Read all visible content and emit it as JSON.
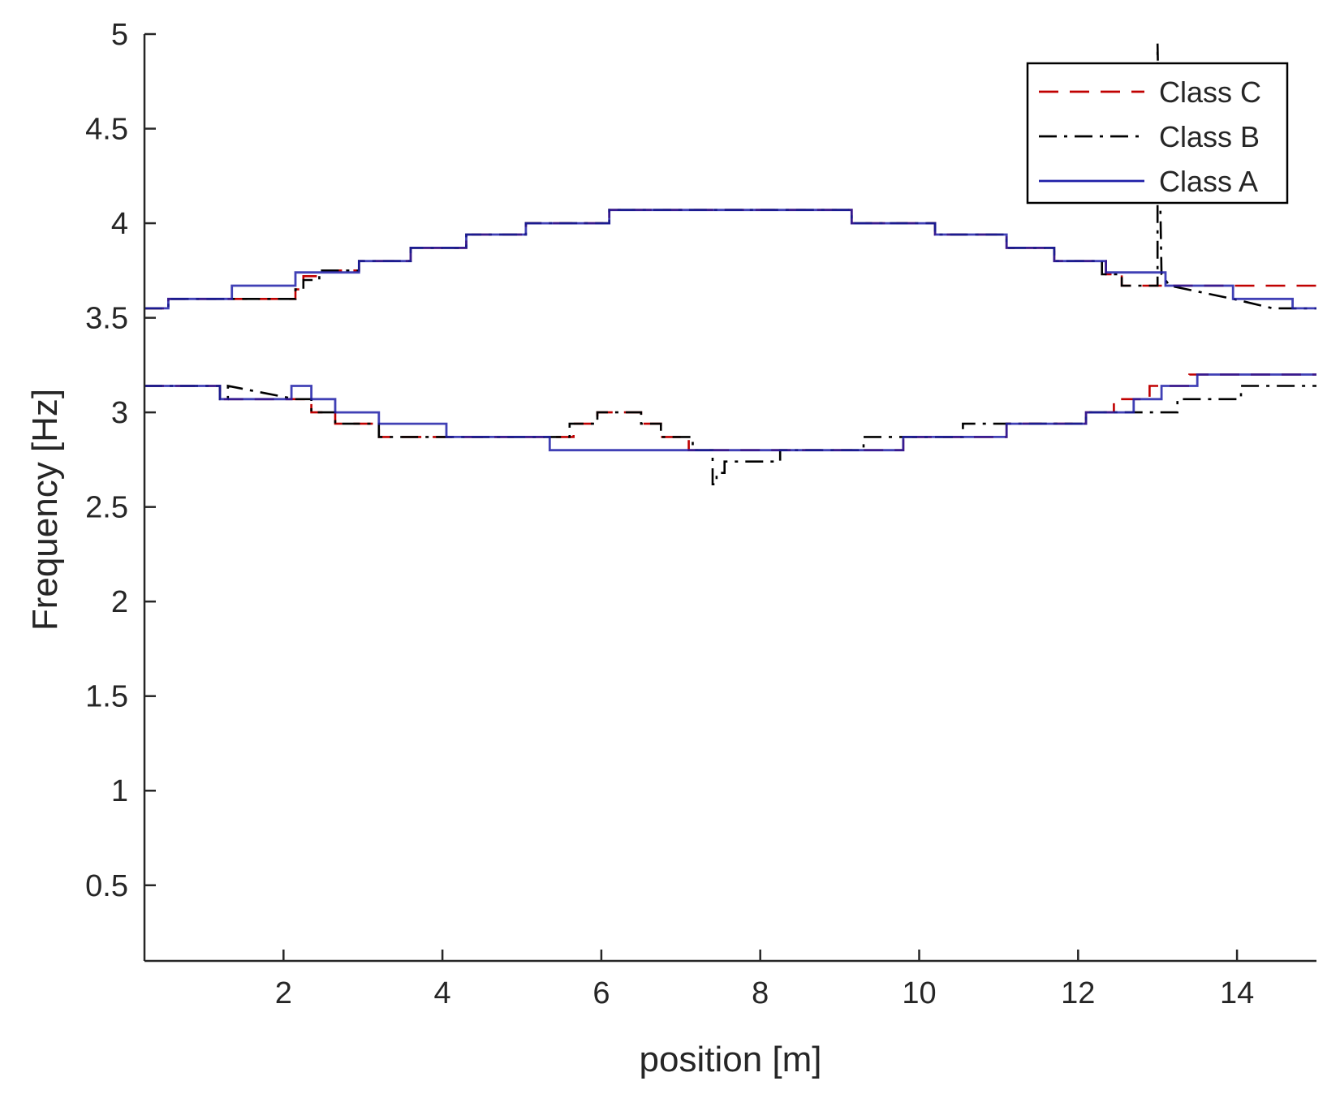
{
  "chart_data": {
    "type": "line",
    "title": "",
    "xlabel": "position [m]",
    "ylabel": "Frequency [Hz]",
    "xlim": [
      0.25,
      15
    ],
    "ylim": [
      0.1,
      5
    ],
    "xticks": [
      2,
      4,
      6,
      8,
      10,
      12,
      14
    ],
    "yticks": [
      0.5,
      1,
      1.5,
      2,
      2.5,
      3,
      3.5,
      4,
      4.5,
      5
    ],
    "grid": false,
    "legend": {
      "placement": "top-right"
    },
    "series": [
      {
        "name": "Class C",
        "color": "#c00000",
        "dash": "dashed",
        "lines": [
          {
            "x": [
              0.25,
              0.55,
              0.55,
              1.35,
              1.35,
              2.15,
              2.15,
              2.25,
              2.25,
              2.45,
              2.45,
              2.95,
              2.95,
              3.6,
              3.6,
              4.3,
              4.3,
              5.05,
              5.05,
              6.1,
              6.1,
              9.15,
              9.15,
              10.2,
              10.2,
              11.1,
              11.1,
              11.7,
              11.7,
              12.35,
              12.35,
              12.55,
              12.55,
              13.0,
              13.0,
              15.0
            ],
            "y": [
              3.55,
              3.55,
              3.6,
              3.6,
              3.6,
              3.6,
              3.65,
              3.65,
              3.72,
              3.72,
              3.75,
              3.75,
              3.8,
              3.8,
              3.87,
              3.87,
              3.94,
              3.94,
              4.0,
              4.0,
              4.07,
              4.07,
              4.0,
              4.0,
              3.94,
              3.94,
              3.87,
              3.87,
              3.8,
              3.8,
              3.73,
              3.73,
              3.67,
              3.67,
              3.67,
              3.67
            ]
          },
          {
            "x": [
              0.25,
              1.2,
              1.2,
              1.3,
              1.3,
              2.15,
              2.15,
              2.35,
              2.35,
              2.65,
              2.65,
              3.2,
              3.2,
              4.05,
              4.05,
              5.35,
              5.35,
              5.65,
              5.65,
              5.95,
              5.95,
              6.5,
              6.5,
              6.75,
              6.75,
              7.1,
              7.1,
              7.4,
              7.4,
              9.8,
              9.8,
              11.1,
              11.1,
              12.1,
              12.1,
              12.45,
              12.45,
              12.9,
              12.9,
              13.4,
              13.4,
              15.0
            ],
            "y": [
              3.14,
              3.14,
              3.07,
              3.07,
              3.07,
              3.07,
              3.07,
              3.07,
              3.0,
              3.0,
              2.94,
              2.94,
              2.87,
              2.87,
              2.87,
              2.87,
              2.87,
              2.87,
              2.94,
              2.94,
              3.0,
              3.0,
              2.94,
              2.94,
              2.87,
              2.87,
              2.8,
              2.8,
              2.8,
              2.8,
              2.87,
              2.87,
              2.94,
              2.94,
              3.0,
              3.0,
              3.07,
              3.07,
              3.14,
              3.14,
              3.2,
              3.2
            ]
          }
        ]
      },
      {
        "name": "Class B",
        "color": "#000000",
        "dash": "dashdot",
        "lines": [
          {
            "x": [
              0.25,
              0.55,
              0.55,
              1.35,
              1.35,
              2.15,
              2.15,
              2.25,
              2.25,
              2.45,
              2.45,
              2.95,
              2.95,
              3.6,
              3.6,
              4.3,
              4.3,
              5.05,
              5.05,
              6.1,
              6.1,
              9.15,
              9.15,
              10.2,
              10.2,
              11.1,
              11.1,
              11.7,
              11.7,
              12.3,
              12.3,
              12.55,
              12.55,
              13.0,
              13.0,
              13.05,
              13.05,
              13.15,
              13.15,
              13.95,
              13.95,
              14.45,
              14.45,
              15.0
            ],
            "y": [
              3.55,
              3.55,
              3.6,
              3.6,
              3.6,
              3.6,
              3.65,
              3.65,
              3.7,
              3.7,
              3.75,
              3.75,
              3.8,
              3.8,
              3.87,
              3.87,
              3.94,
              3.94,
              4.0,
              4.0,
              4.07,
              4.07,
              4.0,
              4.0,
              3.94,
              3.94,
              3.87,
              3.87,
              3.8,
              3.8,
              3.73,
              3.73,
              3.67,
              3.67,
              4.95,
              3.73,
              3.73,
              3.67,
              3.67,
              3.6,
              3.6,
              3.55,
              3.55,
              3.55
            ]
          },
          {
            "x": [
              0.25,
              1.2,
              1.2,
              1.3,
              1.3,
              2.15,
              2.15,
              2.35,
              2.35,
              2.65,
              2.65,
              3.2,
              3.2,
              4.05,
              4.05,
              5.6,
              5.6,
              5.95,
              5.95,
              6.5,
              6.5,
              6.75,
              6.75,
              7.15,
              7.15,
              7.4,
              7.4,
              7.45,
              7.45,
              7.55,
              7.55,
              8.25,
              8.25,
              9.3,
              9.3,
              10.55,
              10.55,
              12.1,
              12.1,
              12.45,
              12.45,
              13.25,
              13.25,
              13.4,
              13.4,
              14.05,
              14.05,
              15.0
            ],
            "y": [
              3.14,
              3.14,
              3.07,
              3.07,
              3.14,
              3.07,
              3.07,
              3.07,
              3.0,
              3.0,
              2.94,
              2.94,
              2.87,
              2.87,
              2.87,
              2.87,
              2.94,
              2.94,
              3.0,
              3.0,
              2.94,
              2.94,
              2.87,
              2.87,
              2.8,
              2.8,
              2.62,
              2.62,
              2.68,
              2.68,
              2.74,
              2.74,
              2.8,
              2.8,
              2.87,
              2.87,
              2.94,
              2.94,
              3.0,
              3.0,
              3.0,
              3.0,
              3.07,
              3.07,
              3.07,
              3.07,
              3.14,
              3.14
            ]
          }
        ]
      },
      {
        "name": "Class A",
        "color": "#1f1fa8",
        "dash": "solid",
        "lines": [
          {
            "x": [
              0.25,
              0.55,
              0.55,
              1.35,
              1.35,
              2.15,
              2.15,
              2.95,
              2.95,
              3.6,
              3.6,
              4.3,
              4.3,
              5.05,
              5.05,
              6.1,
              6.1,
              9.15,
              9.15,
              10.2,
              10.2,
              11.1,
              11.1,
              11.7,
              11.7,
              12.35,
              12.35,
              13.1,
              13.1,
              13.95,
              13.95,
              14.7,
              14.7,
              15.0
            ],
            "y": [
              3.55,
              3.55,
              3.6,
              3.6,
              3.67,
              3.67,
              3.74,
              3.74,
              3.8,
              3.8,
              3.87,
              3.87,
              3.94,
              3.94,
              4.0,
              4.0,
              4.07,
              4.07,
              4.0,
              4.0,
              3.94,
              3.94,
              3.87,
              3.87,
              3.8,
              3.8,
              3.74,
              3.74,
              3.67,
              3.67,
              3.6,
              3.6,
              3.55,
              3.55
            ]
          },
          {
            "x": [
              0.25,
              1.2,
              1.2,
              2.1,
              2.1,
              2.35,
              2.35,
              2.65,
              2.65,
              3.2,
              3.2,
              4.05,
              4.05,
              5.35,
              5.35,
              9.8,
              9.8,
              11.1,
              11.1,
              12.1,
              12.1,
              12.7,
              12.7,
              13.05,
              13.05,
              13.5,
              13.5,
              15.0
            ],
            "y": [
              3.14,
              3.14,
              3.07,
              3.07,
              3.14,
              3.14,
              3.07,
              3.07,
              3.0,
              3.0,
              2.94,
              2.94,
              2.87,
              2.87,
              2.8,
              2.8,
              2.87,
              2.87,
              2.94,
              2.94,
              3.0,
              3.0,
              3.07,
              3.07,
              3.14,
              3.14,
              3.2,
              3.2
            ]
          }
        ]
      }
    ]
  }
}
